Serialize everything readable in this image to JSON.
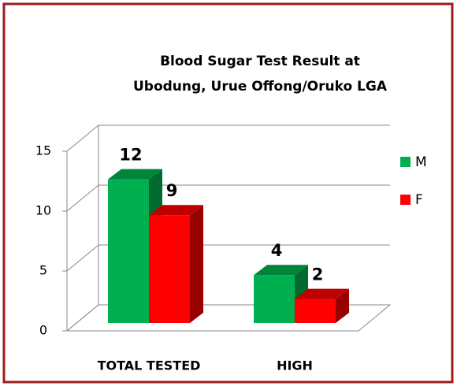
{
  "chart_data": {
    "type": "bar3d",
    "title": [
      "Blood Sugar Test Result at",
      "Ubodung, Urue Offong/Oruko LGA"
    ],
    "categories": [
      "TOTAL TESTED",
      "HIGH"
    ],
    "series": [
      {
        "name": "M",
        "color": "#00b050",
        "values": [
          12,
          4
        ]
      },
      {
        "name": "F",
        "color": "#ff0000",
        "values": [
          9,
          2
        ]
      }
    ],
    "ylim": [
      0,
      15
    ],
    "yticks": [
      0,
      5,
      10,
      15
    ],
    "grid": true,
    "legend": "right"
  }
}
